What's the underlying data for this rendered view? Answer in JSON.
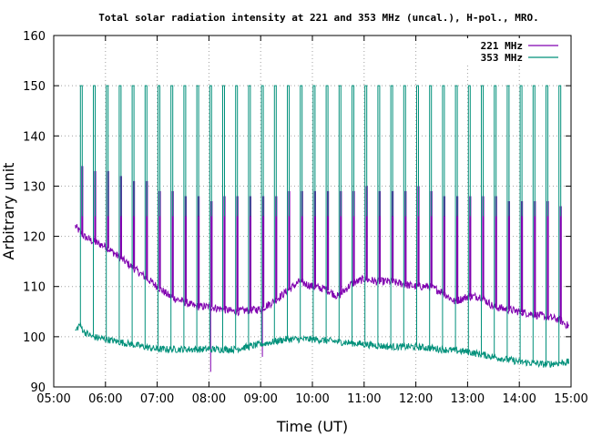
{
  "chart_data": {
    "type": "line",
    "title": "Total solar radiation intensity at 221 and 353 MHz (uncal.), H-pol., MRO.",
    "xlabel": "Time (UT)",
    "ylabel": "Arbitrary unit",
    "xlim": [
      "05:00",
      "15:00"
    ],
    "ylim": [
      90,
      160
    ],
    "xticks": [
      "05:00",
      "06:00",
      "07:00",
      "08:00",
      "09:00",
      "10:00",
      "11:00",
      "12:00",
      "13:00",
      "14:00",
      "15:00"
    ],
    "yticks": [
      90,
      100,
      110,
      120,
      130,
      140,
      150,
      160
    ],
    "grid": true,
    "legend_position": "top-right",
    "series": [
      {
        "name": "221 MHz",
        "color": "#8000b0",
        "baseline": [
          [
            "05:25",
            122
          ],
          [
            "05:35",
            120
          ],
          [
            "05:45",
            119
          ],
          [
            "06:00",
            118
          ],
          [
            "06:15",
            116
          ],
          [
            "06:30",
            114
          ],
          [
            "06:45",
            112
          ],
          [
            "07:00",
            110
          ],
          [
            "07:15",
            108
          ],
          [
            "07:30",
            107
          ],
          [
            "07:45",
            106
          ],
          [
            "08:00",
            106
          ],
          [
            "08:30",
            105
          ],
          [
            "09:00",
            105.5
          ],
          [
            "09:15",
            107
          ],
          [
            "09:30",
            109
          ],
          [
            "09:45",
            111
          ],
          [
            "10:00",
            110
          ],
          [
            "10:15",
            109.5
          ],
          [
            "10:30",
            108
          ],
          [
            "10:45",
            110.5
          ],
          [
            "11:00",
            111.5
          ],
          [
            "11:15",
            111
          ],
          [
            "11:30",
            111
          ],
          [
            "11:45",
            110.5
          ],
          [
            "12:00",
            110
          ],
          [
            "12:15",
            110
          ],
          [
            "12:30",
            109
          ],
          [
            "12:45",
            107
          ],
          [
            "13:00",
            108
          ],
          [
            "13:15",
            108
          ],
          [
            "13:30",
            106
          ],
          [
            "13:45",
            105.5
          ],
          [
            "14:00",
            105
          ],
          [
            "14:15",
            104.5
          ],
          [
            "14:30",
            104
          ],
          [
            "14:45",
            103.5
          ],
          [
            "14:58",
            102
          ]
        ],
        "spike_peaks": [
          [
            "05:33",
            134
          ],
          [
            "05:48",
            133
          ],
          [
            "06:03",
            133
          ],
          [
            "06:18",
            132
          ],
          [
            "06:33",
            131
          ],
          [
            "06:48",
            131
          ],
          [
            "07:03",
            129
          ],
          [
            "07:18",
            129
          ],
          [
            "07:33",
            128
          ],
          [
            "07:48",
            128
          ],
          [
            "08:03",
            127
          ],
          [
            "08:18",
            128
          ],
          [
            "08:33",
            128
          ],
          [
            "08:48",
            128
          ],
          [
            "09:03",
            128
          ],
          [
            "09:18",
            128
          ],
          [
            "09:33",
            129
          ],
          [
            "09:48",
            129
          ],
          [
            "10:03",
            129
          ],
          [
            "10:18",
            129
          ],
          [
            "10:33",
            129
          ],
          [
            "10:48",
            129
          ],
          [
            "11:03",
            130
          ],
          [
            "11:18",
            129
          ],
          [
            "11:33",
            129
          ],
          [
            "11:48",
            129
          ],
          [
            "12:03",
            130
          ],
          [
            "12:18",
            129
          ],
          [
            "12:33",
            128
          ],
          [
            "12:48",
            128
          ],
          [
            "13:03",
            128
          ],
          [
            "13:18",
            128
          ],
          [
            "13:33",
            128
          ],
          [
            "13:48",
            127
          ],
          [
            "14:03",
            127
          ],
          [
            "14:18",
            127
          ],
          [
            "14:33",
            127
          ],
          [
            "14:48",
            126
          ]
        ],
        "dips": [
          [
            "08:02",
            93
          ],
          [
            "09:02",
            96
          ]
        ]
      },
      {
        "name": "353 MHz",
        "color": "#00907a",
        "baseline": [
          [
            "05:25",
            101
          ],
          [
            "05:30",
            102.5
          ],
          [
            "05:35",
            101
          ],
          [
            "05:45",
            100
          ],
          [
            "06:00",
            99.5
          ],
          [
            "06:15",
            99
          ],
          [
            "06:30",
            98.5
          ],
          [
            "06:45",
            98
          ],
          [
            "07:00",
            97.5
          ],
          [
            "07:30",
            97.5
          ],
          [
            "08:00",
            97.5
          ],
          [
            "08:30",
            97.5
          ],
          [
            "09:00",
            98.5
          ],
          [
            "09:30",
            99.5
          ],
          [
            "10:00",
            99.5
          ],
          [
            "10:30",
            99
          ],
          [
            "11:00",
            98.5
          ],
          [
            "11:30",
            98
          ],
          [
            "12:00",
            98
          ],
          [
            "12:30",
            97.5
          ],
          [
            "13:00",
            97
          ],
          [
            "13:30",
            96
          ],
          [
            "14:00",
            95
          ],
          [
            "14:30",
            94.5
          ],
          [
            "14:58",
            95
          ]
        ],
        "spike_peaks": [
          [
            "05:32",
            150
          ],
          [
            "05:47",
            150
          ],
          [
            "06:02",
            150
          ],
          [
            "06:17",
            150
          ],
          [
            "06:32",
            150
          ],
          [
            "06:47",
            150
          ],
          [
            "07:02",
            150
          ],
          [
            "07:17",
            150
          ],
          [
            "07:32",
            150
          ],
          [
            "07:47",
            150
          ],
          [
            "08:02",
            150
          ],
          [
            "08:17",
            150
          ],
          [
            "08:32",
            150
          ],
          [
            "08:47",
            150
          ],
          [
            "09:02",
            150
          ],
          [
            "09:17",
            150
          ],
          [
            "09:32",
            150
          ],
          [
            "09:47",
            150
          ],
          [
            "10:02",
            150
          ],
          [
            "10:17",
            150
          ],
          [
            "10:32",
            150
          ],
          [
            "10:47",
            150
          ],
          [
            "11:02",
            150
          ],
          [
            "11:17",
            150
          ],
          [
            "11:32",
            150
          ],
          [
            "11:47",
            150
          ],
          [
            "12:02",
            150
          ],
          [
            "12:17",
            150
          ],
          [
            "12:32",
            150
          ],
          [
            "12:47",
            150
          ],
          [
            "13:02",
            150
          ],
          [
            "13:17",
            150
          ],
          [
            "13:32",
            150
          ],
          [
            "13:47",
            150
          ],
          [
            "14:02",
            150
          ],
          [
            "14:17",
            150
          ],
          [
            "14:32",
            150
          ],
          [
            "14:47",
            150
          ]
        ],
        "spike_bottom": 124
      }
    ]
  }
}
